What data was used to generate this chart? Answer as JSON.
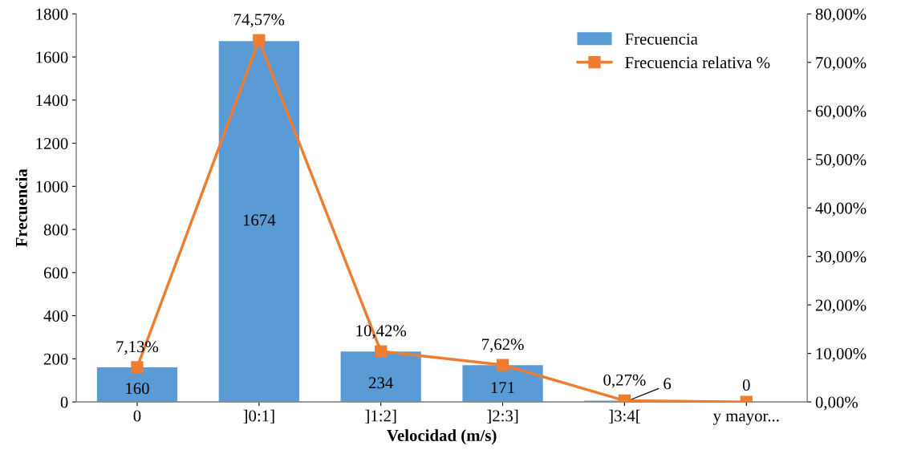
{
  "chart_data": {
    "type": "bar",
    "xlabel": "Velocidad (m/s)",
    "ylabel": "Frecuencia",
    "categories": [
      "0",
      "]0:1]",
      "]1:2]",
      "]2:3]",
      "]3:4[",
      "y mayor..."
    ],
    "series": [
      {
        "name": "Frecuencia",
        "color": "#5b9bd5",
        "values": [
          160,
          1674,
          234,
          171,
          6,
          0
        ],
        "value_labels": [
          "160",
          "1674",
          "234",
          "171",
          "6",
          "0"
        ]
      },
      {
        "name": "Frecuencia relativa %",
        "type": "line",
        "axis": "y2",
        "color": "#ed7d31",
        "marker": "square",
        "values": [
          7.13,
          74.57,
          10.42,
          7.62,
          0.27,
          0
        ],
        "value_labels": [
          "7,13%",
          "74,57%",
          "10,42%",
          "7,62%",
          "0,27%",
          null
        ]
      }
    ],
    "ylim": [
      0,
      1800
    ],
    "yticks": [
      0,
      200,
      400,
      600,
      800,
      1000,
      1200,
      1400,
      1600,
      1800
    ],
    "y2lim": [
      0,
      80
    ],
    "y2ticks": [
      {
        "value": 0,
        "label": "0,00%"
      },
      {
        "value": 10,
        "label": "10,00%"
      },
      {
        "value": 20,
        "label": "20,00%"
      },
      {
        "value": 30,
        "label": "30,00%"
      },
      {
        "value": 40,
        "label": "40,00%"
      },
      {
        "value": 50,
        "label": "50,00%"
      },
      {
        "value": 60,
        "label": "60,00%"
      },
      {
        "value": 70,
        "label": "70,00%"
      },
      {
        "value": 80,
        "label": "80,00%"
      }
    ],
    "grid": false,
    "legend": "top right"
  }
}
